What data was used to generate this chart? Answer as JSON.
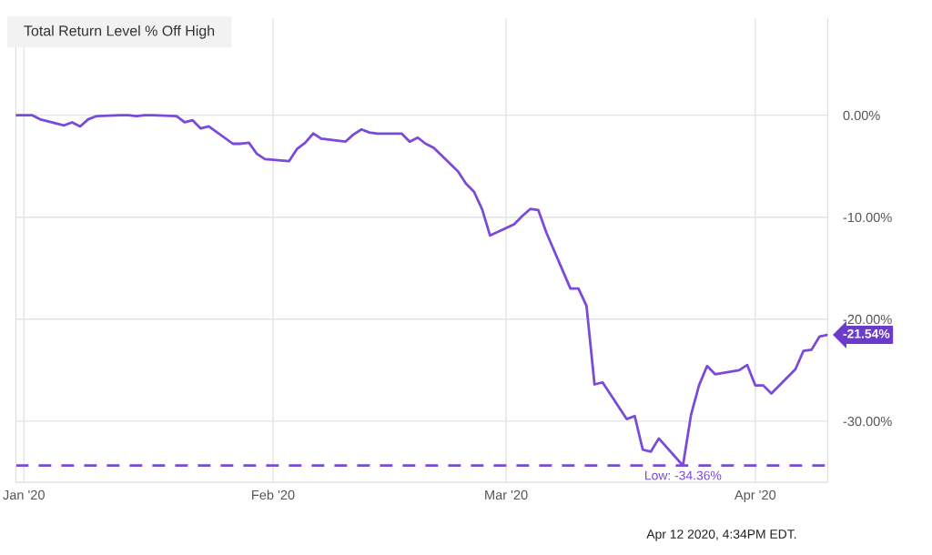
{
  "chart_data": {
    "type": "line",
    "title": "Total Return Level % Off High",
    "x": [
      "2019-12-31",
      "2020-01-02",
      "2020-01-03",
      "2020-01-06",
      "2020-01-07",
      "2020-01-08",
      "2020-01-09",
      "2020-01-10",
      "2020-01-13",
      "2020-01-14",
      "2020-01-15",
      "2020-01-16",
      "2020-01-17",
      "2020-01-20",
      "2020-01-21",
      "2020-01-22",
      "2020-01-23",
      "2020-01-24",
      "2020-01-27",
      "2020-01-28",
      "2020-01-29",
      "2020-01-30",
      "2020-01-31",
      "2020-02-03",
      "2020-02-04",
      "2020-02-05",
      "2020-02-06",
      "2020-02-07",
      "2020-02-10",
      "2020-02-11",
      "2020-02-12",
      "2020-02-13",
      "2020-02-14",
      "2020-02-17",
      "2020-02-18",
      "2020-02-19",
      "2020-02-20",
      "2020-02-21",
      "2020-02-24",
      "2020-02-25",
      "2020-02-26",
      "2020-02-27",
      "2020-02-28",
      "2020-03-02",
      "2020-03-03",
      "2020-03-04",
      "2020-03-05",
      "2020-03-06",
      "2020-03-09",
      "2020-03-10",
      "2020-03-11",
      "2020-03-12",
      "2020-03-13",
      "2020-03-16",
      "2020-03-17",
      "2020-03-18",
      "2020-03-19",
      "2020-03-20",
      "2020-03-23",
      "2020-03-24",
      "2020-03-25",
      "2020-03-26",
      "2020-03-27",
      "2020-03-30",
      "2020-03-31",
      "2020-04-01",
      "2020-04-02",
      "2020-04-03",
      "2020-04-06",
      "2020-04-07",
      "2020-04-08",
      "2020-04-09",
      "2020-04-10"
    ],
    "series": [
      {
        "color": "#7a4ad8",
        "values": [
          0.0,
          0.0,
          -0.4,
          -1.0,
          -0.7,
          -1.1,
          -0.4,
          -0.1,
          0.0,
          0.0,
          -0.1,
          0.0,
          0.0,
          -0.1,
          -0.7,
          -0.5,
          -1.3,
          -1.1,
          -2.8,
          -2.8,
          -2.7,
          -3.8,
          -4.3,
          -4.5,
          -3.3,
          -2.7,
          -1.8,
          -2.3,
          -2.6,
          -1.9,
          -1.4,
          -1.7,
          -1.8,
          -1.8,
          -2.6,
          -2.2,
          -2.8,
          -3.2,
          -5.5,
          -6.7,
          -7.5,
          -9.2,
          -11.8,
          -10.7,
          -9.9,
          -9.2,
          -9.3,
          -11.5,
          -17.0,
          -17.0,
          -18.7,
          -26.4,
          -26.2,
          -29.8,
          -29.5,
          -32.8,
          -33.0,
          -31.7,
          -34.36,
          -29.4,
          -26.5,
          -24.6,
          -25.4,
          -25.0,
          -24.5,
          -26.5,
          -26.5,
          -27.3,
          -24.9,
          -23.1,
          -23.0,
          -21.7,
          -21.54
        ]
      }
    ],
    "xlim": [
      "2019-12-31",
      "2020-04-10"
    ],
    "xticks": [
      {
        "value": "2020-01-01",
        "label": "Jan '20"
      },
      {
        "value": "2020-02-01",
        "label": "Feb '20"
      },
      {
        "value": "2020-03-01",
        "label": "Mar '20"
      },
      {
        "value": "2020-04-01",
        "label": "Apr '20"
      }
    ],
    "ylim": [
      -36,
      9.5
    ],
    "yticks": [
      {
        "value": -30,
        "label": "-30.00%"
      },
      {
        "value": -20,
        "label": "-20.00%"
      },
      {
        "value": -10,
        "label": "-10.00%"
      },
      {
        "value": 0,
        "label": "0.00%"
      }
    ],
    "grid": true,
    "legend": false,
    "marker": "none",
    "line_style": "solid",
    "ref_lines": [
      {
        "axis": "y",
        "value": -34.36,
        "label": "Low: -34.36%",
        "color": "#7a4ad8",
        "line_style": "dashed"
      }
    ],
    "annotations": [
      {
        "text": "-21.54%",
        "x": "2020-04-10",
        "y": -21.54
      },
      "Apr 12 2020, 4:34PM EDT."
    ]
  }
}
